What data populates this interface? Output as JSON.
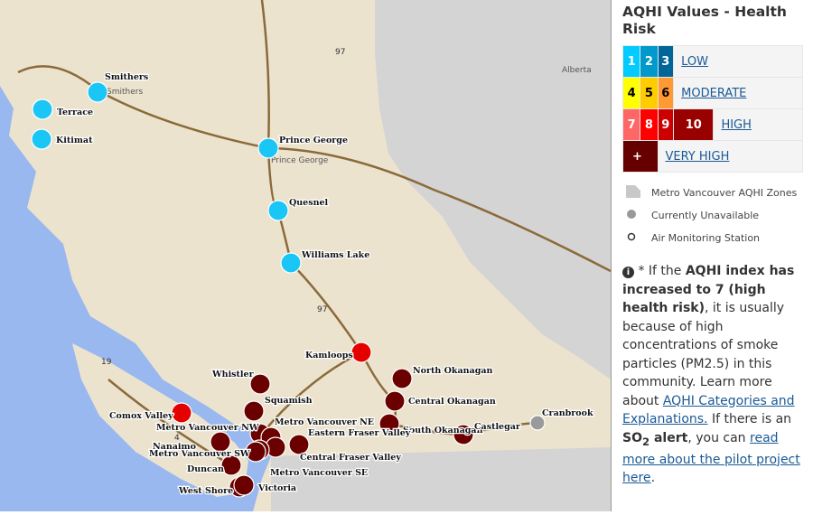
{
  "map": {
    "base_labels": {
      "alberta": "Alberta",
      "prince_george_city": "Prince George",
      "smithers_city": "Smithers",
      "hwy97a": "97",
      "hwy97b": "97",
      "hwy19": "19",
      "hwy4": "4"
    },
    "stations": [
      {
        "name": "Smithers",
        "aqhi": "low",
        "color": "#1ac6f5"
      },
      {
        "name": "Terrace",
        "aqhi": "low",
        "color": "#1ac6f5"
      },
      {
        "name": "Kitimat",
        "aqhi": "low",
        "color": "#1ac6f5"
      },
      {
        "name": "Prince George",
        "aqhi": "low",
        "color": "#1ac6f5"
      },
      {
        "name": "Quesnel",
        "aqhi": "low",
        "color": "#1ac6f5"
      },
      {
        "name": "Williams Lake",
        "aqhi": "low",
        "color": "#1ac6f5"
      },
      {
        "name": "Kamloops",
        "aqhi": "high",
        "color": "#e50000"
      },
      {
        "name": "Comox Valley",
        "aqhi": "high",
        "color": "#e50000"
      },
      {
        "name": "Whistler",
        "aqhi": "very high",
        "color": "#6b0000"
      },
      {
        "name": "Squamish",
        "aqhi": "very high",
        "color": "#6b0000"
      },
      {
        "name": "North Okanagan",
        "aqhi": "very high",
        "color": "#6b0000"
      },
      {
        "name": "Central Okanagan",
        "aqhi": "very high",
        "color": "#6b0000"
      },
      {
        "name": "South Okanagan",
        "aqhi": "very high",
        "color": "#6b0000"
      },
      {
        "name": "Castlegar",
        "aqhi": "very high",
        "color": "#6b0000"
      },
      {
        "name": "Cranbrook",
        "aqhi": "unavailable",
        "color": "#9a9a9a"
      },
      {
        "name": "Metro Vancouver NW",
        "aqhi": "very high",
        "color": "#6b0000"
      },
      {
        "name": "Metro Vancouver NE",
        "aqhi": "very high",
        "color": "#6b0000"
      },
      {
        "name": "Eastern Fraser Valley",
        "aqhi": "very high",
        "color": "#6b0000"
      },
      {
        "name": "Central Fraser Valley",
        "aqhi": "very high",
        "color": "#6b0000"
      },
      {
        "name": "Metro Vancouver SE",
        "aqhi": "very high",
        "color": "#6b0000"
      },
      {
        "name": "Metro Vancouver SW",
        "aqhi": "very high",
        "color": "#6b0000"
      },
      {
        "name": "Nanaimo",
        "aqhi": "very high",
        "color": "#6b0000"
      },
      {
        "name": "Duncan",
        "aqhi": "very high",
        "color": "#6b0000"
      },
      {
        "name": "West Shore",
        "aqhi": "very high",
        "color": "#6b0000"
      },
      {
        "name": "Victoria",
        "aqhi": "very high",
        "color": "#6b0000"
      }
    ]
  },
  "panel": {
    "title": "AQHI Values - Health Risk",
    "scale": [
      {
        "values": [
          "1",
          "2",
          "3"
        ],
        "colors": [
          "#00ccff",
          "#0099cc",
          "#006699"
        ],
        "label": "LOW"
      },
      {
        "values": [
          "4",
          "5",
          "6"
        ],
        "colors": [
          "#ffff00",
          "#ffcc00",
          "#ff9933"
        ],
        "label": "MODERATE"
      },
      {
        "values": [
          "7",
          "8",
          "9",
          "10"
        ],
        "colors": [
          "#ff6666",
          "#ff0000",
          "#cc0000",
          "#990000"
        ],
        "label": "HIGH"
      },
      {
        "values": [
          "+"
        ],
        "colors": [
          "#660000"
        ],
        "label": "VERY HIGH"
      }
    ],
    "legend": {
      "zones": "Metro Vancouver AQHI Zones",
      "unavailable": "Currently Unavailable",
      "station": "Air Monitoring Station"
    },
    "note": {
      "p1": "* If the ",
      "b1": "AQHI index has increased to 7 (high health risk)",
      "p2": ", it is usually because of high concentrations of smoke particles (PM2.5) in this community. Learn more about ",
      "link1": "AQHI Categories and Explanations.",
      "p3": " If there is an ",
      "b2a": "SO",
      "b2sub": "2",
      "b2b": " alert",
      "p4": ", you can ",
      "link2": "read more about the pilot project here",
      "p5": "."
    }
  }
}
